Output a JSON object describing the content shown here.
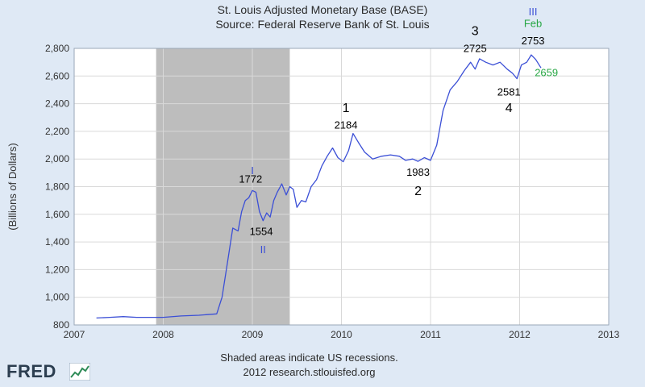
{
  "chart_data": {
    "type": "line",
    "title": "St. Louis Adjusted Monetary Base (BASE)",
    "subtitle": "Source: Federal Reserve Bank of St. Louis",
    "xlabel": "",
    "ylabel": "(Billions of Dollars)",
    "xlim": [
      2007,
      2013
    ],
    "ylim": [
      800,
      2800
    ],
    "x_ticks": [
      "2007",
      "2008",
      "2009",
      "2010",
      "2011",
      "2012",
      "2013"
    ],
    "y_ticks": [
      "800",
      "1,000",
      "1,200",
      "1,400",
      "1,600",
      "1,800",
      "2,000",
      "2,200",
      "2,400",
      "2,600",
      "2,800"
    ],
    "grid": true,
    "shaded_regions": [
      {
        "x0": 2007.92,
        "x1": 2009.42
      }
    ],
    "footer": [
      "Shaded areas indicate US recessions.",
      "2012 research.stlouisfed.org"
    ],
    "series": [
      {
        "name": "",
        "color": "#3b4fd6",
        "x": [
          2007.25,
          2007.4,
          2007.55,
          2007.7,
          2007.85,
          2008.0,
          2008.2,
          2008.4,
          2008.6,
          2008.66,
          2008.72,
          2008.78,
          2008.84,
          2008.88,
          2008.92,
          2008.96,
          2009.0,
          2009.04,
          2009.08,
          2009.12,
          2009.16,
          2009.2,
          2009.24,
          2009.28,
          2009.33,
          2009.38,
          2009.42,
          2009.46,
          2009.5,
          2009.55,
          2009.6,
          2009.66,
          2009.72,
          2009.78,
          2009.84,
          2009.9,
          2009.96,
          2010.02,
          2010.08,
          2010.13,
          2010.19,
          2010.26,
          2010.35,
          2010.45,
          2010.55,
          2010.65,
          2010.72,
          2010.8,
          2010.86,
          2010.93,
          2011.0,
          2011.07,
          2011.14,
          2011.22,
          2011.3,
          2011.38,
          2011.45,
          2011.5,
          2011.55,
          2011.62,
          2011.7,
          2011.78,
          2011.86,
          2011.92,
          2011.97,
          2012.02,
          2012.08,
          2012.13,
          2012.18,
          2012.24
        ],
        "values": [
          850,
          855,
          860,
          855,
          855,
          855,
          865,
          870,
          880,
          1000,
          1250,
          1500,
          1480,
          1620,
          1700,
          1720,
          1772,
          1760,
          1620,
          1554,
          1610,
          1580,
          1700,
          1760,
          1820,
          1740,
          1800,
          1780,
          1650,
          1700,
          1690,
          1800,
          1850,
          1950,
          2020,
          2080,
          2010,
          1980,
          2060,
          2184,
          2120,
          2050,
          2000,
          2020,
          2030,
          2020,
          1990,
          2000,
          1983,
          2010,
          1990,
          2100,
          2350,
          2500,
          2560,
          2640,
          2700,
          2650,
          2725,
          2700,
          2680,
          2700,
          2650,
          2620,
          2581,
          2680,
          2700,
          2753,
          2720,
          2659
        ]
      }
    ],
    "annotations": [
      {
        "text": "I",
        "x": 2009.0,
        "y": 1890,
        "color": "#3b4fd6"
      },
      {
        "text": "1772",
        "x": 2008.98,
        "y": 1828,
        "color": "#000000"
      },
      {
        "text": "1554",
        "x": 2009.1,
        "y": 1450,
        "color": "#000000"
      },
      {
        "text": "II",
        "x": 2009.12,
        "y": 1320,
        "color": "#3b4fd6"
      },
      {
        "text": "1",
        "x": 2010.05,
        "y": 2340,
        "color": "#000000"
      },
      {
        "text": "2184",
        "x": 2010.05,
        "y": 2220,
        "color": "#000000"
      },
      {
        "text": "1983",
        "x": 2010.86,
        "y": 1880,
        "color": "#000000"
      },
      {
        "text": "2",
        "x": 2010.86,
        "y": 1740,
        "color": "#000000"
      },
      {
        "text": "3",
        "x": 2011.5,
        "y": 2895,
        "color": "#000000"
      },
      {
        "text": "2725",
        "x": 2011.5,
        "y": 2775,
        "color": "#000000"
      },
      {
        "text": "2581",
        "x": 2011.88,
        "y": 2460,
        "color": "#000000"
      },
      {
        "text": "4",
        "x": 2011.88,
        "y": 2340,
        "color": "#000000"
      },
      {
        "text": "III",
        "x": 2012.15,
        "y": 3040,
        "color": "#3b4fd6"
      },
      {
        "text": "Feb",
        "x": 2012.15,
        "y": 2955,
        "color": "#28a745"
      },
      {
        "text": "2753",
        "x": 2012.15,
        "y": 2830,
        "color": "#000000"
      },
      {
        "text": "2659",
        "x": 2012.3,
        "y": 2600,
        "color": "#28a745"
      }
    ]
  },
  "logo": {
    "text": "FRED"
  }
}
